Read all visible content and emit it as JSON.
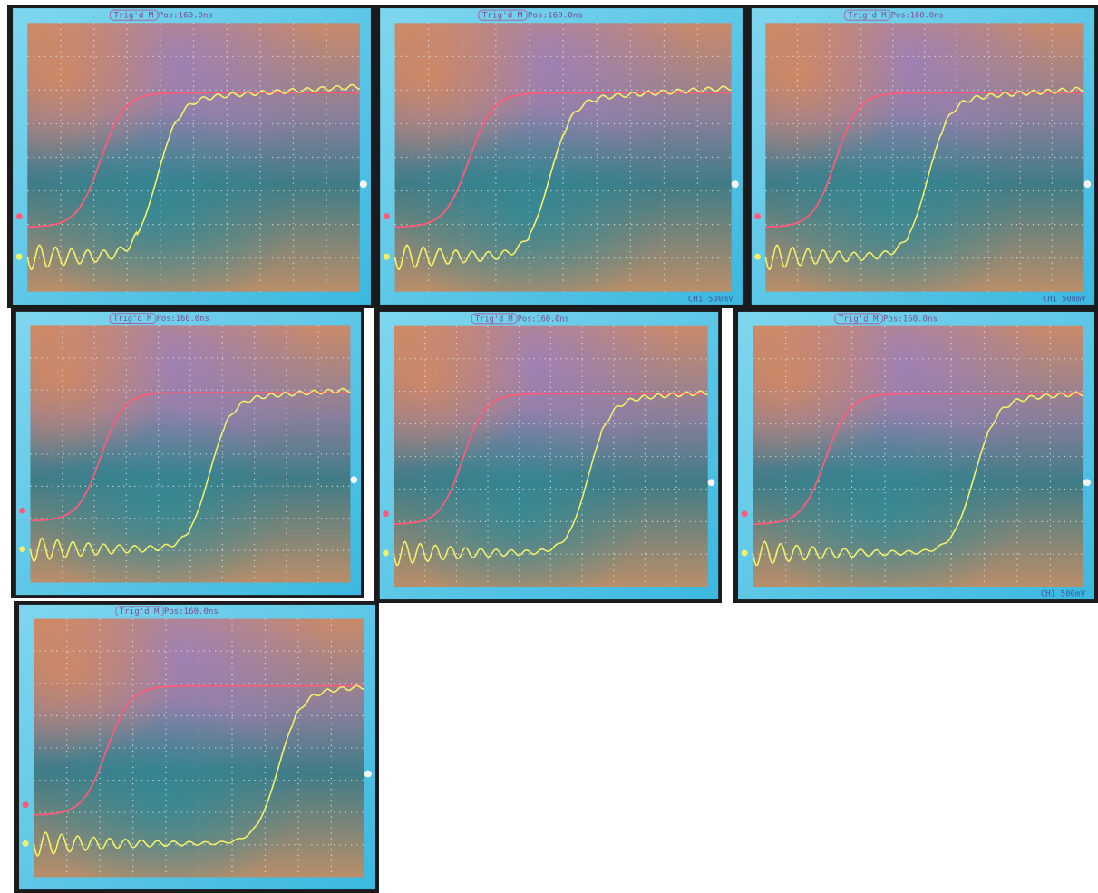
{
  "panels": [
    {
      "header": "Trig'd  M Pos:160.0ns"
    },
    {
      "header": "Trig'd  M Pos:160.0ns",
      "footer": "CH1  500mV"
    },
    {
      "header": "Trig'd  M Pos:160.0ns",
      "footer": "CH1  500mV"
    },
    {
      "header": "Trig'd  M Pos:160.0ns"
    },
    {
      "header": "Trig'd  M Pos:160.0ns"
    },
    {
      "header": "Trig'd  M Pos:160.0ns",
      "footer": "CH1  500mV"
    },
    {
      "header": "Trig'd  M Pos:160.0ns"
    }
  ]
}
